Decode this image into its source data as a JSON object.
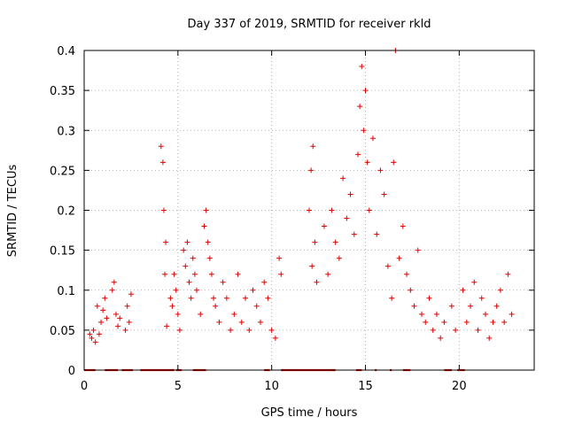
{
  "chart_data": {
    "type": "scatter",
    "title": "Day 337 of 2019, SRMTID for receiver rkld",
    "xlabel": "GPS time / hours",
    "ylabel": "SRMTID / TECUs",
    "xlim": [
      0,
      24
    ],
    "ylim": [
      0,
      0.4
    ],
    "xticks": [
      0,
      5,
      10,
      15,
      20
    ],
    "xtick_labels": [
      "0",
      "5",
      "10",
      "15",
      "20"
    ],
    "yticks": [
      0,
      0.05,
      0.1,
      0.15,
      0.2,
      0.25,
      0.3,
      0.35,
      0.4
    ],
    "ytick_labels": [
      "0",
      "0.05",
      "0.1",
      "0.15",
      "0.2",
      "0.25",
      "0.3",
      "0.35",
      "0.4"
    ],
    "grid": true,
    "marker": "+",
    "color": "#e00000",
    "series": [
      {
        "name": "SRMTID",
        "x": [
          0.3,
          0.4,
          0.5,
          0.6,
          0.7,
          0.8,
          0.9,
          1.0,
          1.1,
          1.2,
          1.5,
          1.6,
          1.7,
          1.8,
          1.9,
          2.2,
          2.3,
          2.4,
          2.5,
          4.1,
          4.2,
          4.25,
          4.3,
          4.35,
          4.4,
          4.6,
          4.7,
          4.8,
          4.9,
          5.0,
          5.1,
          5.3,
          5.4,
          5.5,
          5.6,
          5.7,
          5.8,
          5.9,
          6.0,
          6.2,
          6.4,
          6.5,
          6.6,
          6.7,
          6.8,
          6.9,
          7.0,
          7.2,
          7.4,
          7.6,
          7.8,
          8.0,
          8.2,
          8.4,
          8.6,
          8.8,
          9.0,
          9.2,
          9.4,
          9.6,
          9.8,
          10.0,
          10.2,
          10.4,
          10.5,
          12.0,
          12.1,
          12.15,
          12.2,
          12.3,
          12.4,
          12.8,
          13.0,
          13.2,
          13.4,
          13.6,
          13.8,
          14.0,
          14.2,
          14.4,
          14.6,
          14.7,
          14.8,
          14.9,
          15.0,
          15.1,
          15.2,
          15.4,
          15.6,
          15.8,
          16.0,
          16.2,
          16.4,
          16.5,
          16.6,
          16.8,
          17.0,
          17.2,
          17.4,
          17.6,
          17.8,
          18.0,
          18.2,
          18.4,
          18.6,
          18.8,
          19.0,
          19.2,
          19.6,
          19.8,
          20.2,
          20.4,
          20.6,
          20.8,
          21.0,
          21.2,
          21.4,
          21.6,
          21.8,
          22.0,
          22.2,
          22.4,
          22.6,
          22.8
        ],
        "y": [
          0.045,
          0.04,
          0.05,
          0.035,
          0.08,
          0.045,
          0.06,
          0.075,
          0.09,
          0.065,
          0.1,
          0.11,
          0.07,
          0.055,
          0.065,
          0.05,
          0.08,
          0.06,
          0.095,
          0.28,
          0.26,
          0.2,
          0.12,
          0.16,
          0.055,
          0.09,
          0.08,
          0.12,
          0.1,
          0.07,
          0.05,
          0.15,
          0.13,
          0.16,
          0.11,
          0.09,
          0.14,
          0.12,
          0.1,
          0.07,
          0.18,
          0.2,
          0.16,
          0.14,
          0.12,
          0.09,
          0.08,
          0.06,
          0.11,
          0.09,
          0.05,
          0.07,
          0.12,
          0.06,
          0.09,
          0.05,
          0.1,
          0.08,
          0.06,
          0.11,
          0.09,
          0.05,
          0.04,
          0.14,
          0.12,
          0.2,
          0.25,
          0.13,
          0.28,
          0.16,
          0.11,
          0.18,
          0.12,
          0.2,
          0.16,
          0.14,
          0.24,
          0.19,
          0.22,
          0.17,
          0.27,
          0.33,
          0.38,
          0.3,
          0.35,
          0.26,
          0.2,
          0.29,
          0.17,
          0.25,
          0.22,
          0.13,
          0.09,
          0.26,
          0.4,
          0.14,
          0.18,
          0.12,
          0.1,
          0.08,
          0.15,
          0.07,
          0.06,
          0.09,
          0.05,
          0.07,
          0.04,
          0.06,
          0.08,
          0.05,
          0.1,
          0.06,
          0.08,
          0.11,
          0.05,
          0.09,
          0.07,
          0.04,
          0.06,
          0.08,
          0.1,
          0.06,
          0.12,
          0.07
        ]
      }
    ],
    "zero_segments": [
      [
        0.0,
        0.6
      ],
      [
        1.1,
        1.8
      ],
      [
        2.0,
        2.6
      ],
      [
        3.0,
        4.8
      ],
      [
        4.9,
        5.2
      ],
      [
        5.8,
        6.5
      ],
      [
        9.6,
        9.9
      ],
      [
        10.5,
        13.4
      ],
      [
        14.5,
        14.8
      ],
      [
        15.5,
        15.6
      ],
      [
        16.3,
        16.4
      ],
      [
        17.0,
        17.4
      ],
      [
        19.2,
        19.6
      ],
      [
        19.9,
        20.3
      ]
    ]
  }
}
